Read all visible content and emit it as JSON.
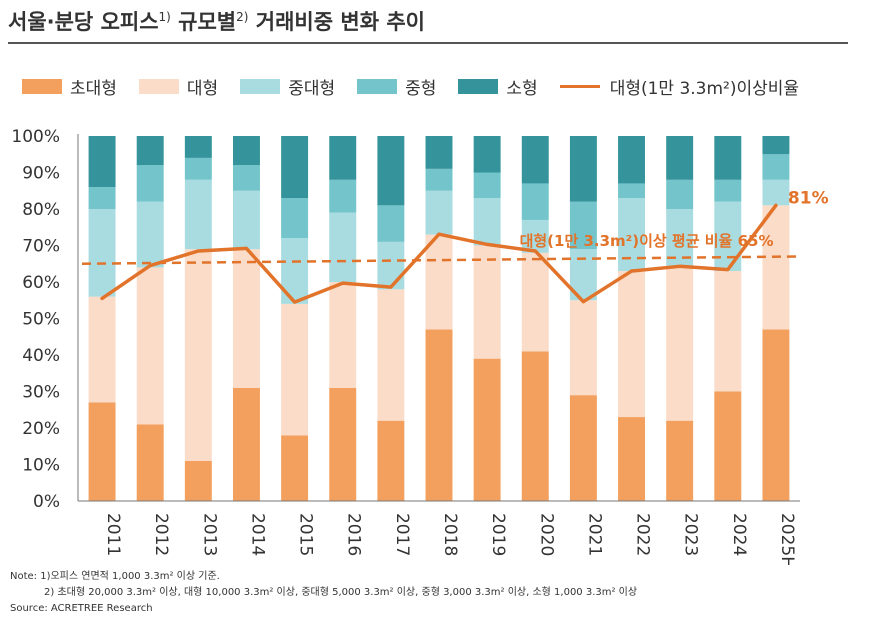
{
  "title": {
    "text": "서울·분당 오피스",
    "sup1": "1)",
    "mid": " 규모별",
    "sup2": "2)",
    "rest": " 거래비중 변화 추이"
  },
  "colors": {
    "xlarge": "#f3a05f",
    "large": "#fbdcc8",
    "midlarge": "#a8dce1",
    "mid": "#73c5cb",
    "small": "#35939b",
    "line": "#e2732a",
    "axis": "#777777"
  },
  "legend": [
    {
      "key": "xlarge",
      "label": "초대형"
    },
    {
      "key": "large",
      "label": "대형"
    },
    {
      "key": "midlarge",
      "label": "중대형"
    },
    {
      "key": "mid",
      "label": "중형"
    },
    {
      "key": "small",
      "label": "소형"
    },
    {
      "key": "line",
      "label": "대형(1만 3.3m²)이상비율"
    }
  ],
  "chart_data": {
    "type": "bar",
    "stacked": true,
    "categories": [
      "2011",
      "2012",
      "2013",
      "2014",
      "2015",
      "2016",
      "2017",
      "2018",
      "2019",
      "2020",
      "2021",
      "2022",
      "2023",
      "2024",
      "2025H"
    ],
    "y_ticks": [
      "0%",
      "10%",
      "20%",
      "30%",
      "40%",
      "50%",
      "60%",
      "70%",
      "80%",
      "90%",
      "100%"
    ],
    "ylim": [
      0,
      100
    ],
    "series": [
      {
        "name": "초대형",
        "key": "xlarge",
        "values": [
          27,
          21,
          11,
          31,
          18,
          31,
          22,
          47,
          39,
          41,
          29,
          23,
          22,
          30,
          47
        ]
      },
      {
        "name": "대형",
        "key": "large",
        "values": [
          29,
          43,
          58,
          38,
          36,
          29,
          36,
          26,
          31,
          27,
          26,
          40,
          42,
          33,
          34
        ]
      },
      {
        "name": "중대형",
        "key": "midlarge",
        "values": [
          24,
          18,
          19,
          16,
          18,
          19,
          13,
          12,
          13,
          9,
          14,
          20,
          16,
          19,
          7
        ]
      },
      {
        "name": "중형",
        "key": "mid",
        "values": [
          6,
          10,
          6,
          7,
          11,
          9,
          10,
          6,
          7,
          10,
          13,
          4,
          8,
          6,
          7
        ]
      },
      {
        "name": "소형",
        "key": "small",
        "values": [
          14,
          8,
          6,
          8,
          17,
          12,
          19,
          9,
          10,
          13,
          18,
          13,
          12,
          12,
          5
        ]
      }
    ],
    "line": {
      "name": "대형(1만 3.3m²)이상비율",
      "values": [
        55.5,
        64.5,
        68.5,
        69.2,
        54.5,
        59.7,
        58.6,
        73.1,
        70.3,
        68.5,
        54.6,
        63.0,
        64.3,
        63.4,
        81
      ]
    },
    "average": {
      "value_start": 65,
      "value_end": 67
    },
    "annotations": {
      "end_label": "81%",
      "average_label": "대형(1만 3.3m²)이상 평균 비율 65%"
    }
  },
  "notes": {
    "line1": "Note: 1)오피스 연면적 1,000 3.3m² 이상 기준.",
    "line2": "2) 초대형 20,000 3.3m² 이상, 대형 10,000 3.3m² 이상, 중대형 5,000 3.3m² 이상, 중형 3,000 3.3m² 이상, 소형 1,000 3.3m² 이상",
    "source": "Source: ACRETREE Research"
  }
}
